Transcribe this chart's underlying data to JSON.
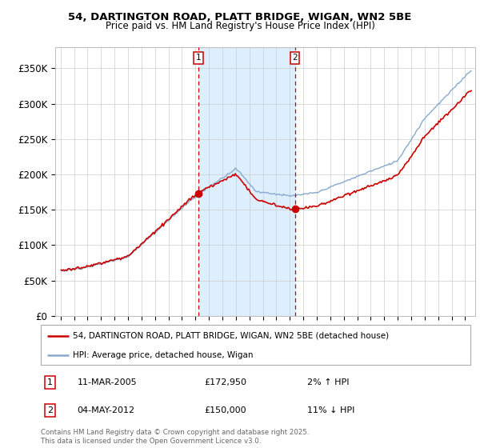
{
  "title_line1": "54, DARTINGTON ROAD, PLATT BRIDGE, WIGAN, WN2 5BE",
  "title_line2": "Price paid vs. HM Land Registry's House Price Index (HPI)",
  "background_color": "#ffffff",
  "plot_bg_color": "#ffffff",
  "grid_color": "#cccccc",
  "red_line_color": "#cc0000",
  "blue_line_color": "#88aacc",
  "shade_color": "#ddeeff",
  "marker_box_color": "#cc0000",
  "ylim_min": 0,
  "ylim_max": 380000,
  "yticks": [
    0,
    50000,
    100000,
    150000,
    200000,
    250000,
    300000,
    350000
  ],
  "ytick_labels": [
    "£0",
    "£50K",
    "£100K",
    "£150K",
    "£200K",
    "£250K",
    "£300K",
    "£350K"
  ],
  "legend_red": "54, DARTINGTON ROAD, PLATT BRIDGE, WIGAN, WN2 5BE (detached house)",
  "legend_blue": "HPI: Average price, detached house, Wigan",
  "footer": "Contains HM Land Registry data © Crown copyright and database right 2025.\nThis data is licensed under the Open Government Licence v3.0.",
  "sale1_date_str": "11-MAR-2005",
  "sale1_price_str": "£172,950",
  "sale1_pct_str": "2% ↑ HPI",
  "sale2_date_str": "04-MAY-2012",
  "sale2_price_str": "£150,000",
  "sale2_pct_str": "11% ↓ HPI",
  "sale1_year": 2005,
  "sale1_month": 3,
  "sale1_price": 172950,
  "sale2_year": 2012,
  "sale2_month": 5,
  "sale2_price": 150000
}
